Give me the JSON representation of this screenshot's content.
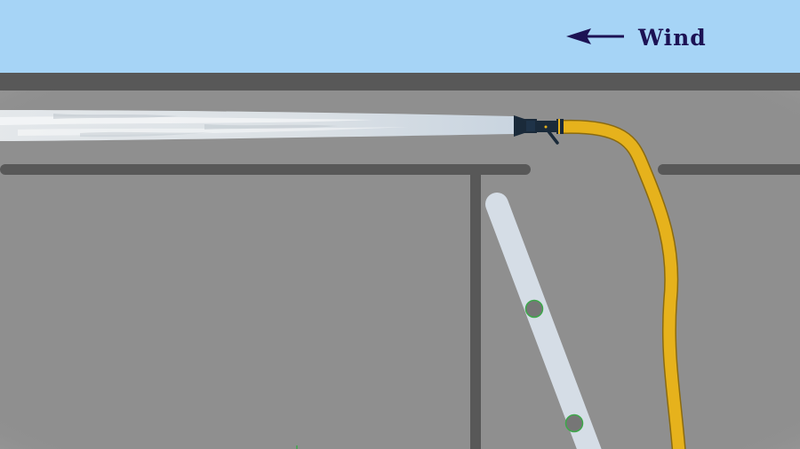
{
  "wind": {
    "label": "Wind",
    "direction": "left"
  },
  "colors": {
    "sky": "#a6d4f6",
    "wall": "#8f8f8f",
    "trim": "#585858",
    "hose": "#e6b21c",
    "nozzle": "#1a2a3a",
    "ladder": "#d5dde6",
    "label": "#1c1254",
    "rung_ring": "#3da84a"
  },
  "icons": {
    "wind_arrow": "left-arrow-icon"
  }
}
